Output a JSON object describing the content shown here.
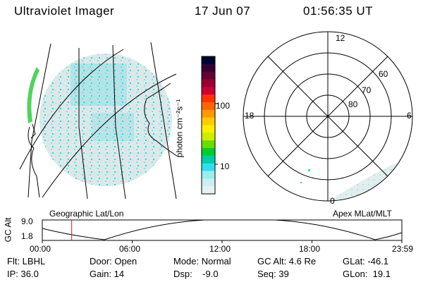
{
  "header": {
    "title": "Ultraviolet Imager",
    "date": "17 Jun 07",
    "time": "01:56:35 UT"
  },
  "colorbar": {
    "unit_label": "photon cm⁻²s⁻¹",
    "ticks": [
      "100",
      "10"
    ],
    "colors": [
      "#000033",
      "#330033",
      "#660033",
      "#990033",
      "#cc0033",
      "#ff3300",
      "#ff6600",
      "#ff9900",
      "#ffcc00",
      "#ffee00",
      "#ccee00",
      "#66dd00",
      "#00cc33",
      "#00ccaa",
      "#33ddee",
      "#99eeee",
      "#cceeee",
      "#e6f2f2"
    ]
  },
  "left_panel": {
    "label": "Geographic Lat/Lon"
  },
  "polar_plot": {
    "label": "Apex MLat/MLT",
    "hour_labels": {
      "top": "12",
      "left": "18",
      "right": "6",
      "bottom": "0"
    },
    "lat_labels": [
      "60",
      "70",
      "80"
    ]
  },
  "timeline": {
    "ylabel": "GC Alt",
    "yticks": [
      "9.0",
      "1.8"
    ],
    "xticks": [
      "00:00",
      "06:00",
      "12:00",
      "18:00",
      "23:59"
    ],
    "current_fraction": 0.0817
  },
  "footer": {
    "row1": [
      "Flt: LBHL",
      "Door: Open",
      "Mode: Normal",
      "GC Alt: 4.6 Re",
      "GLat: -46.1"
    ],
    "row2": [
      "IP: 36.0",
      "Gain: 14",
      "Dsp:    -9.0",
      "Seq: 39",
      "GLon:  19.1"
    ]
  }
}
